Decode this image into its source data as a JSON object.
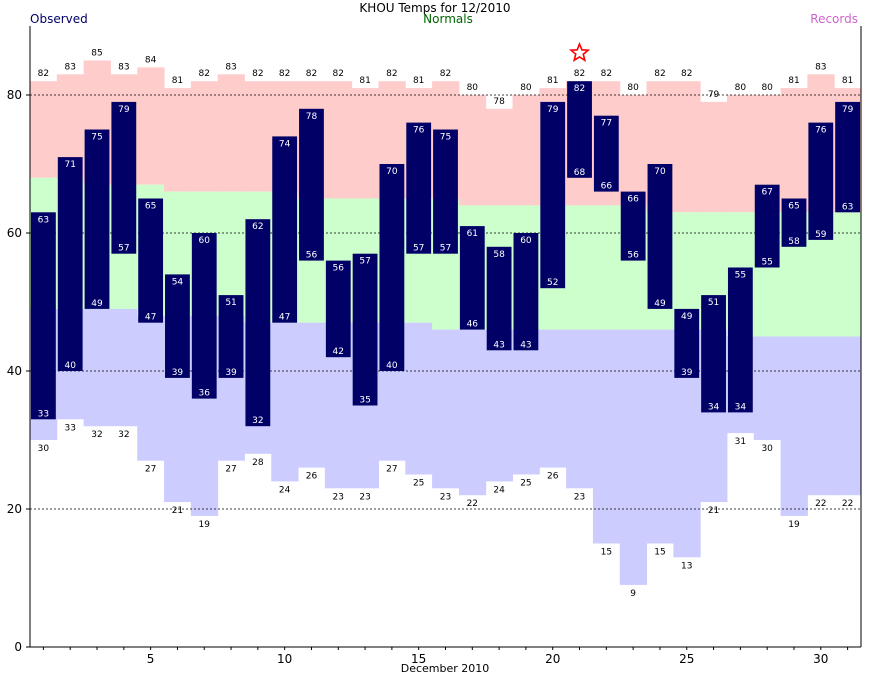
{
  "chart_data": {
    "type": "bar",
    "title": "KHOU Temps for 12/2010",
    "legend": {
      "observed": "Observed",
      "normals": "Normals",
      "records": "Records"
    },
    "xlabel": "December 2010",
    "ylabel": "",
    "xlim": [
      1,
      31
    ],
    "ylim": [
      0,
      90
    ],
    "x_ticks": [
      5,
      10,
      15,
      20,
      25,
      30
    ],
    "y_ticks": [
      0,
      20,
      40,
      60,
      80
    ],
    "grid": "dashed at 20, 40, 60, 80",
    "colors": {
      "observed_bar": "#000066",
      "observed_text": "#000066",
      "normals_text": "#006600",
      "records_text": "#cc66cc",
      "record_range": "#ffcccc",
      "normal_range": "#ccffcc",
      "record_low_range": "#ccccff",
      "star": "#ff0000"
    },
    "days": [
      1,
      2,
      3,
      4,
      5,
      6,
      7,
      8,
      9,
      10,
      11,
      12,
      13,
      14,
      15,
      16,
      17,
      18,
      19,
      20,
      21,
      22,
      23,
      24,
      25,
      26,
      27,
      28,
      29,
      30,
      31
    ],
    "observed_high": [
      63,
      71,
      75,
      79,
      65,
      54,
      60,
      51,
      62,
      74,
      78,
      56,
      57,
      70,
      76,
      75,
      61,
      58,
      60,
      79,
      82,
      77,
      66,
      70,
      49,
      51,
      55,
      67,
      65,
      76,
      79
    ],
    "observed_low": [
      33,
      40,
      49,
      57,
      47,
      39,
      36,
      39,
      32,
      47,
      56,
      42,
      35,
      40,
      57,
      57,
      46,
      43,
      43,
      52,
      68,
      66,
      56,
      49,
      39,
      34,
      34,
      55,
      58,
      59,
      63
    ],
    "record_high": [
      82,
      83,
      85,
      83,
      84,
      81,
      82,
      83,
      82,
      82,
      82,
      82,
      81,
      82,
      81,
      82,
      80,
      78,
      80,
      81,
      82,
      82,
      80,
      82,
      82,
      79,
      80,
      80,
      81,
      83,
      81
    ],
    "record_low": [
      30,
      33,
      32,
      32,
      27,
      21,
      19,
      27,
      28,
      24,
      26,
      23,
      23,
      27,
      25,
      23,
      22,
      24,
      25,
      26,
      23,
      15,
      9,
      15,
      13,
      21,
      31,
      30,
      19,
      22,
      22
    ],
    "normal_high": [
      68,
      68,
      67,
      67,
      67,
      66,
      66,
      66,
      66,
      66,
      65,
      65,
      65,
      65,
      65,
      65,
      64,
      64,
      64,
      64,
      64,
      64,
      64,
      63,
      63,
      63,
      63,
      63,
      63,
      63,
      63
    ],
    "normal_low": [
      49,
      49,
      49,
      49,
      48,
      48,
      48,
      48,
      47,
      47,
      47,
      47,
      47,
      47,
      47,
      46,
      46,
      46,
      46,
      46,
      46,
      46,
      46,
      46,
      46,
      46,
      45,
      45,
      45,
      45,
      45
    ],
    "record_set_days": [
      21
    ]
  }
}
